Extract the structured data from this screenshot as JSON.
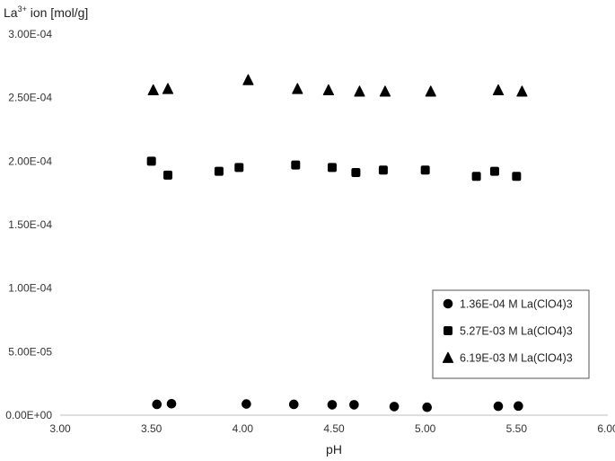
{
  "chart_data": {
    "type": "scatter",
    "title": "",
    "ylabel_main": "La",
    "ylabel_sup": "3+",
    "ylabel_rest": " ion [mol/g]",
    "xlabel": "pH",
    "xlim": [
      3.0,
      6.0
    ],
    "ylim": [
      0,
      0.0003
    ],
    "x_ticks": [
      {
        "value": 3.0,
        "label": "3.00"
      },
      {
        "value": 3.5,
        "label": "3.50"
      },
      {
        "value": 4.0,
        "label": "4.00"
      },
      {
        "value": 4.5,
        "label": "4.50"
      },
      {
        "value": 5.0,
        "label": "5.00"
      },
      {
        "value": 5.5,
        "label": "5.50"
      },
      {
        "value": 6.0,
        "label": "6.00"
      }
    ],
    "y_ticks": [
      {
        "value": 0,
        "label": "0.00E+00"
      },
      {
        "value": 5e-05,
        "label": "5.00E-05"
      },
      {
        "value": 0.0001,
        "label": "1.00E-04"
      },
      {
        "value": 0.00015,
        "label": "1.50E-04"
      },
      {
        "value": 0.0002,
        "label": "2.00E-04"
      },
      {
        "value": 0.00025,
        "label": "2.50E-04"
      },
      {
        "value": 0.0003,
        "label": "3.00E-04"
      }
    ],
    "grid": false,
    "legend_position": "bottom-right",
    "series": [
      {
        "name": "1.36E-04 M La(ClO4)3",
        "marker": "circle",
        "color": "#000000",
        "points": [
          [
            3.53,
            8.5e-06
          ],
          [
            3.61,
            9e-06
          ],
          [
            4.02,
            8.8e-06
          ],
          [
            4.28,
            8.5e-06
          ],
          [
            4.49,
            8.2e-06
          ],
          [
            4.61,
            8.2e-06
          ],
          [
            4.83,
            6.8e-06
          ],
          [
            5.01,
            6.2e-06
          ],
          [
            5.4,
            7e-06
          ],
          [
            5.51,
            7.2e-06
          ]
        ]
      },
      {
        "name": "5.27E-03 M La(ClO4)3",
        "marker": "square",
        "color": "#000000",
        "points": [
          [
            3.5,
            0.0002
          ],
          [
            3.59,
            0.000189
          ],
          [
            3.87,
            0.000192
          ],
          [
            3.98,
            0.000195
          ],
          [
            4.29,
            0.000197
          ],
          [
            4.49,
            0.000195
          ],
          [
            4.62,
            0.000191
          ],
          [
            4.77,
            0.000193
          ],
          [
            5.0,
            0.000193
          ],
          [
            5.28,
            0.000188
          ],
          [
            5.38,
            0.000192
          ],
          [
            5.5,
            0.000188
          ]
        ]
      },
      {
        "name": "6.19E-03 M La(ClO4)3",
        "marker": "triangle",
        "color": "#000000",
        "points": [
          [
            3.51,
            0.000256
          ],
          [
            3.59,
            0.000257
          ],
          [
            4.03,
            0.000264
          ],
          [
            4.3,
            0.000257
          ],
          [
            4.47,
            0.000256
          ],
          [
            4.64,
            0.000255
          ],
          [
            4.78,
            0.000255
          ],
          [
            5.03,
            0.000255
          ],
          [
            5.4,
            0.000256
          ],
          [
            5.53,
            0.000255
          ]
        ]
      }
    ]
  }
}
